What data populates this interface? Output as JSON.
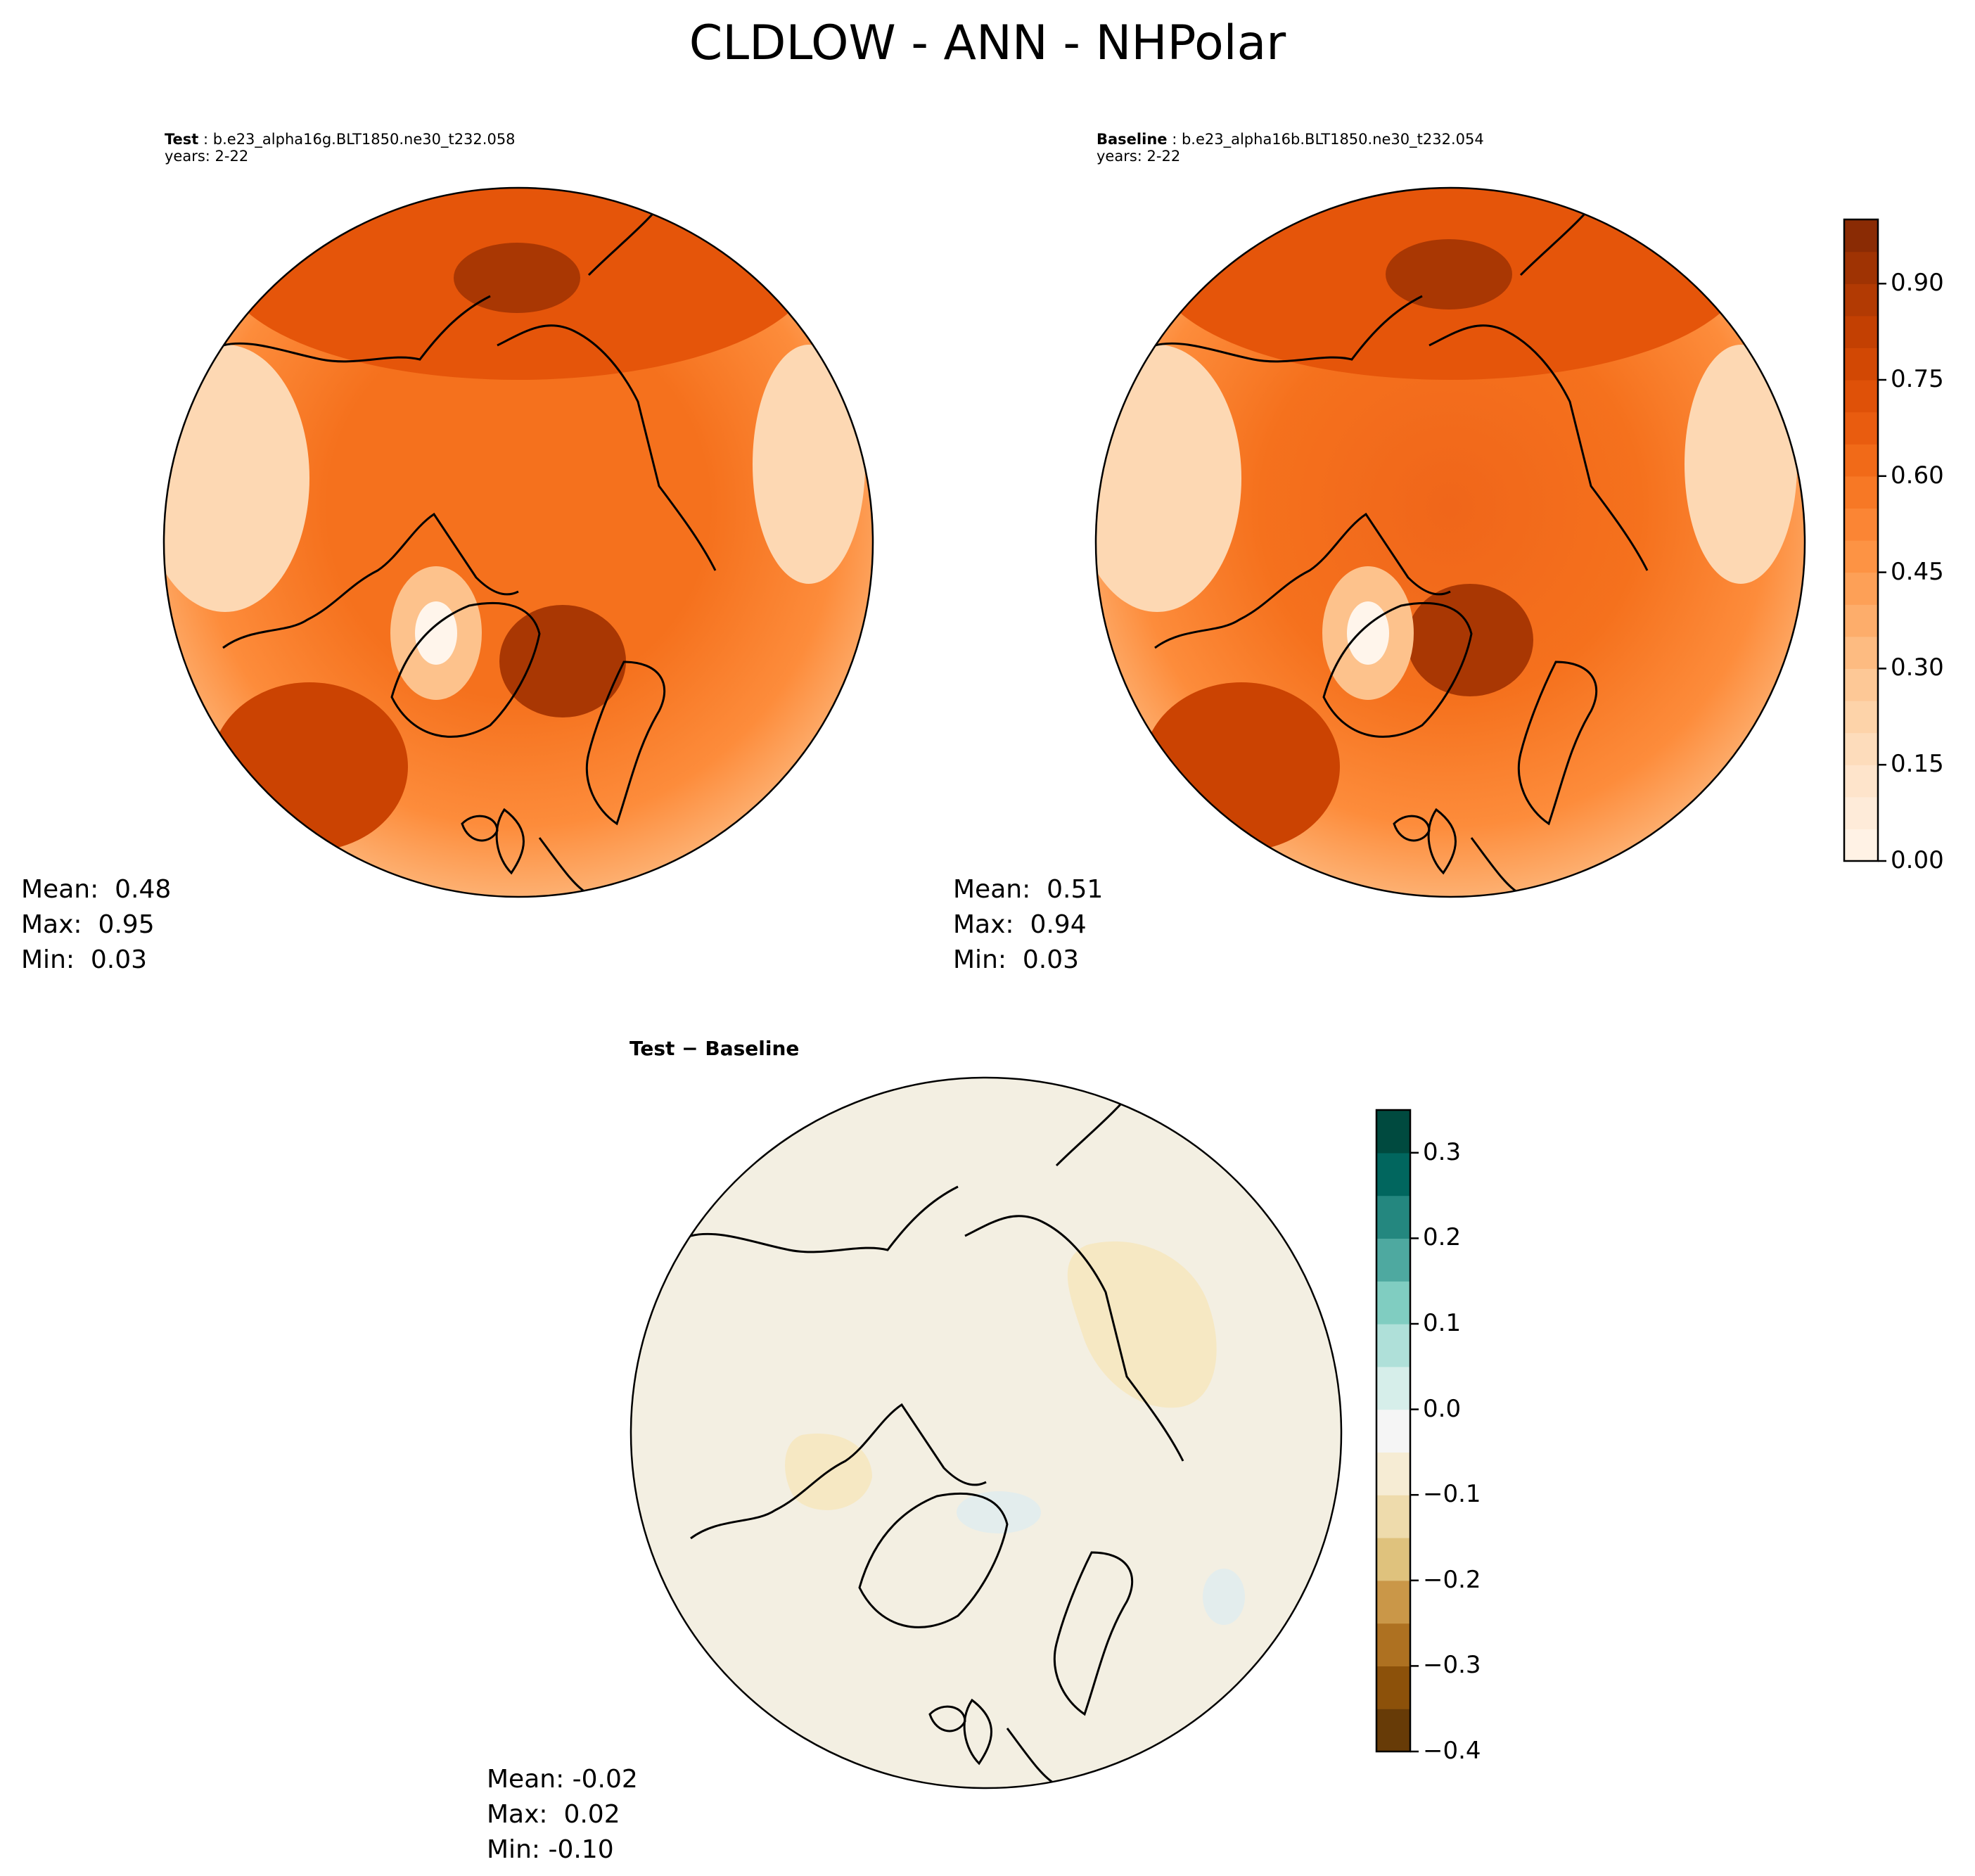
{
  "figure": {
    "title": "CLDLOW - ANN - NHPolar",
    "colors": {
      "orange_ramp": [
        "#fff5eb",
        "#fee8d3",
        "#fdd8b3",
        "#fdc28c",
        "#fda660",
        "#fd8c3b",
        "#f5711d",
        "#e5550a",
        "#cb4302",
        "#a93703",
        "#7f2704"
      ],
      "diverging": [
        "#003c30",
        "#01665e",
        "#35978f",
        "#80cdc1",
        "#c7eae5",
        "#f5f5f5",
        "#f6e8c3",
        "#dfc27d",
        "#bf812d",
        "#8c510a",
        "#543005"
      ],
      "diff_background": "#f3efe2"
    }
  },
  "panels": {
    "test": {
      "label": "Test",
      "case": "b.e23_alpha16g.BLT1850.ne30_t232.058",
      "years": "years: 2-22",
      "stats": {
        "mean": "Mean:  0.48",
        "max": "Max:  0.95",
        "min": "Min:  0.03"
      }
    },
    "baseline": {
      "label": "Baseline",
      "case": "b.e23_alpha16b.BLT1850.ne30_t232.054",
      "years": "years: 2-22",
      "stats": {
        "mean": "Mean:  0.51",
        "max": "Max:  0.94",
        "min": "Min:  0.03"
      }
    },
    "diff": {
      "title_part1": "Test",
      "title_sep": " − ",
      "title_part2": "Baseline",
      "stats": {
        "mean": "Mean: -0.02",
        "max": "Max:  0.02",
        "min": "Min: -0.10"
      }
    }
  },
  "colorbars": {
    "main": {
      "min": 0.0,
      "max": 1.0,
      "ticks": [
        {
          "value": 0.0,
          "label": "0.00"
        },
        {
          "value": 0.15,
          "label": "0.15"
        },
        {
          "value": 0.3,
          "label": "0.30"
        },
        {
          "value": 0.45,
          "label": "0.45"
        },
        {
          "value": 0.6,
          "label": "0.60"
        },
        {
          "value": 0.75,
          "label": "0.75"
        },
        {
          "value": 0.9,
          "label": "0.90"
        }
      ]
    },
    "diff": {
      "min": -0.4,
      "max": 0.35,
      "ticks": [
        {
          "value": -0.4,
          "label": "−0.4"
        },
        {
          "value": -0.3,
          "label": "−0.3"
        },
        {
          "value": -0.2,
          "label": "−0.2"
        },
        {
          "value": -0.1,
          "label": "−0.1"
        },
        {
          "value": 0.0,
          "label": "0.0"
        },
        {
          "value": 0.1,
          "label": "0.1"
        },
        {
          "value": 0.2,
          "label": "0.2"
        },
        {
          "value": 0.3,
          "label": "0.3"
        }
      ]
    }
  }
}
